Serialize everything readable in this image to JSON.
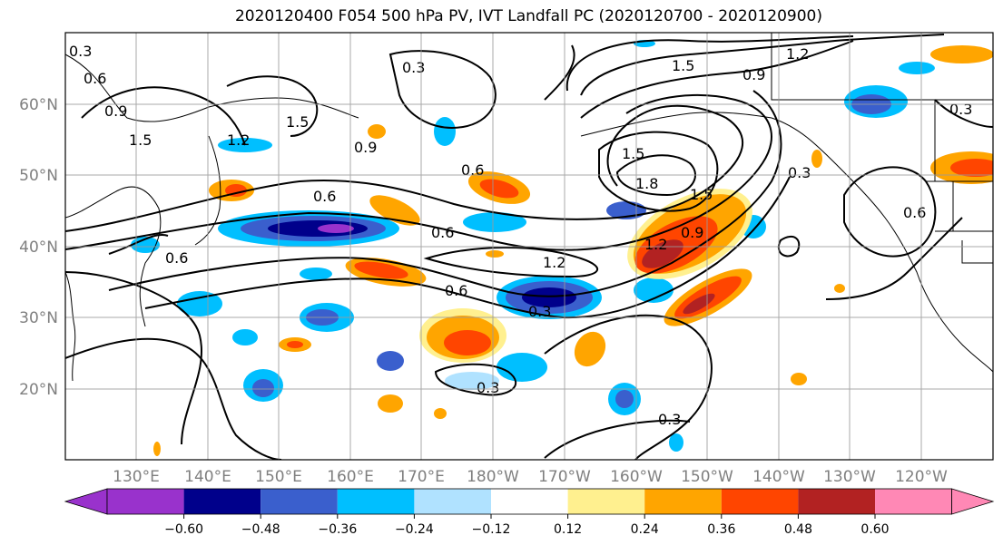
{
  "title": "2020120400 F054 500 hPa PV, IVT Landfall PC (2020120700 - 2020120900)",
  "map": {
    "lat_labels": [
      "60°N",
      "50°N",
      "40°N",
      "30°N",
      "20°N"
    ],
    "lon_labels": [
      "130°E",
      "140°E",
      "150°E",
      "160°E",
      "170°E",
      "180°W",
      "170°W",
      "160°W",
      "150°W",
      "140°W",
      "130°W",
      "120°W"
    ],
    "contour_labels": [
      "0.3",
      "0.6",
      "0.9",
      "1.2",
      "1.5",
      "1.8"
    ]
  },
  "colorbar": {
    "ticks": [
      "−0.60",
      "−0.48",
      "−0.36",
      "−0.24",
      "−0.12",
      "0.12",
      "0.24",
      "0.36",
      "0.48",
      "0.60"
    ],
    "colors": [
      "#9932cc",
      "#00008b",
      "#3a5fcd",
      "#00bfff",
      "#b0e2ff",
      "#ffffff",
      "#fff08f",
      "#ffa500",
      "#ff4500",
      "#b22222",
      "#ff88b5"
    ]
  },
  "colors": {
    "grid": "#9a9a9a",
    "axis_label": "#7f7f7f",
    "contour": "#000000"
  }
}
